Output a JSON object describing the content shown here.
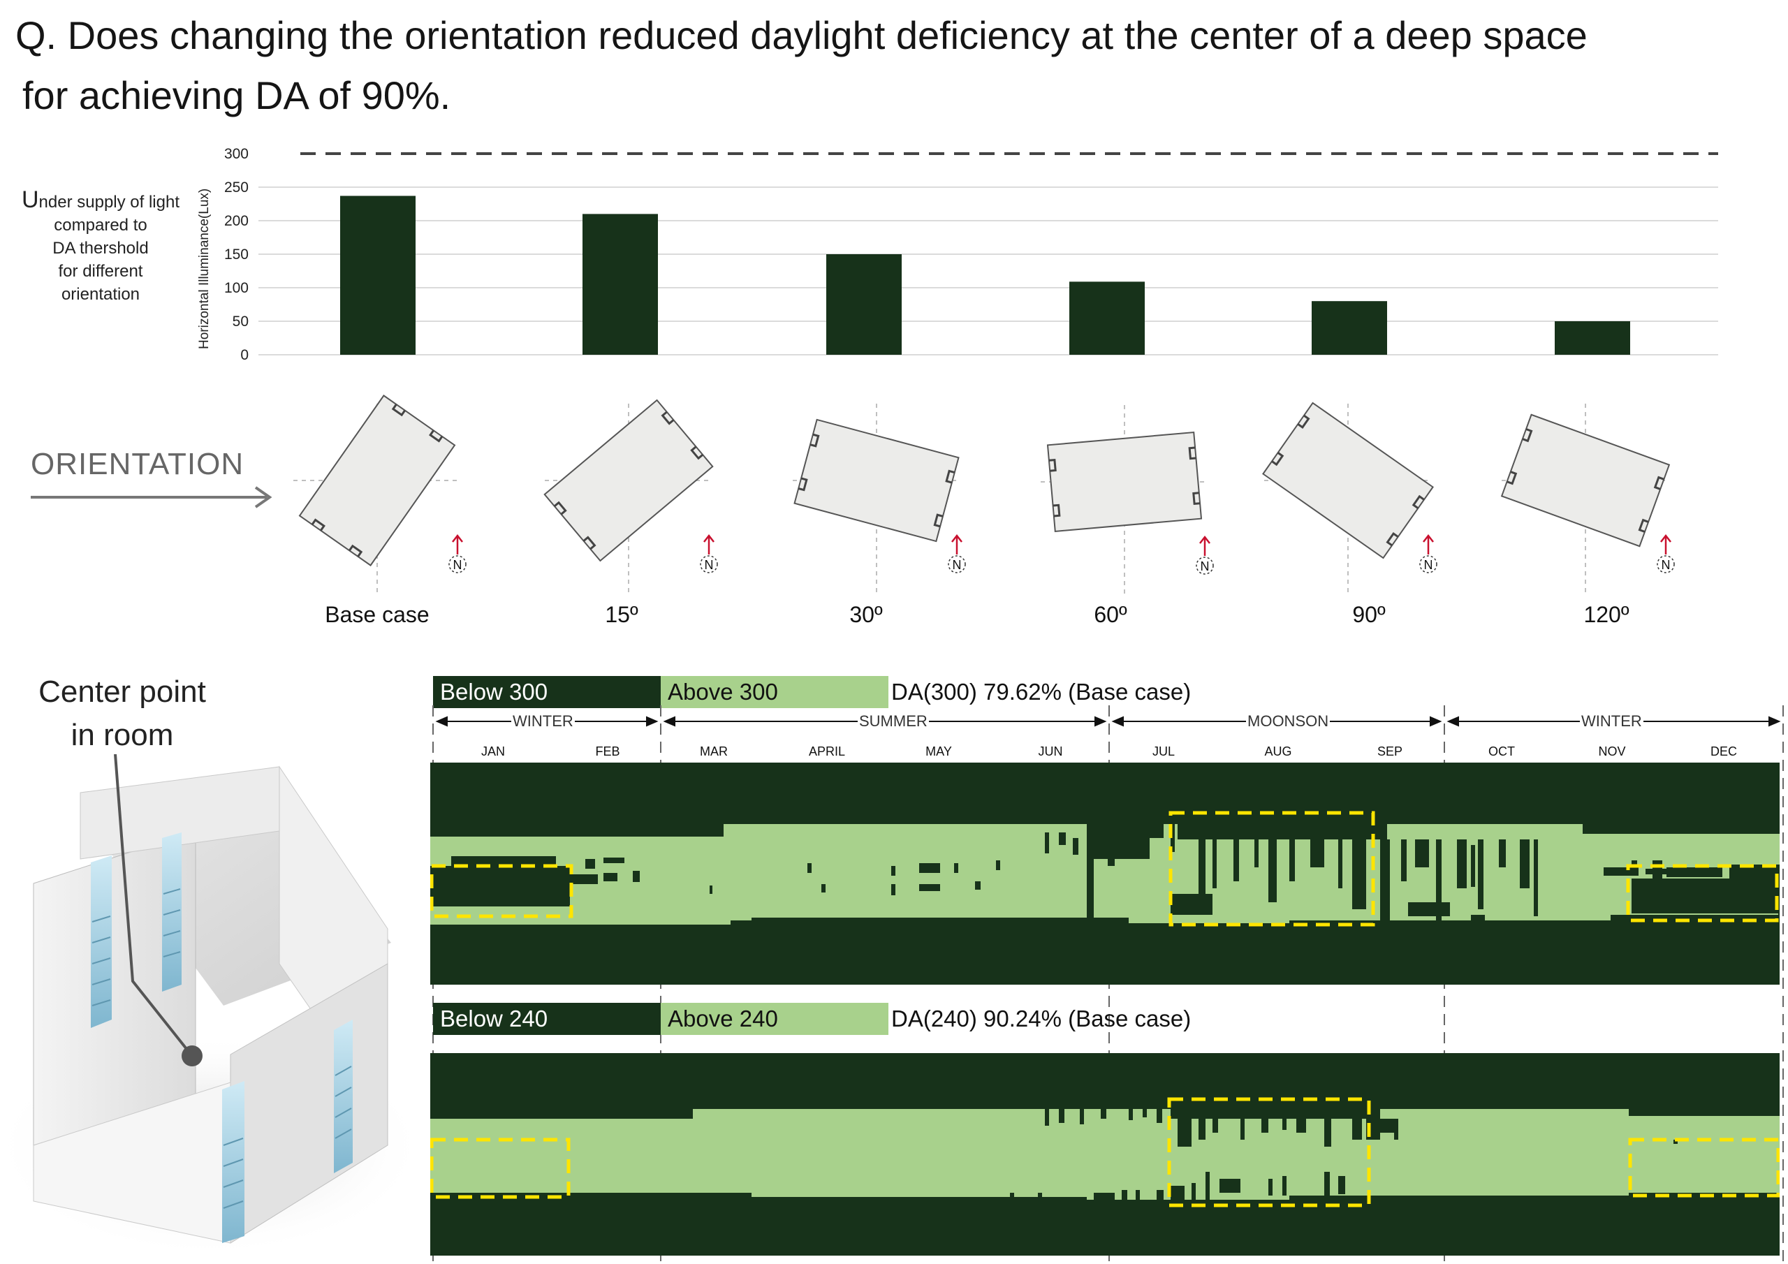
{
  "question": {
    "line1": "Q. Does changing the orientation reduced daylight deficiency at the center of a deep space",
    "line2": "for achieving DA of 90%."
  },
  "side_note": {
    "lead": "U",
    "rest": "nder supply of light",
    "lines": [
      "compared to",
      "DA thershold",
      "for different",
      "orientation"
    ]
  },
  "chart_data": {
    "type": "bar",
    "title": "",
    "xlabel": "",
    "ylabel": "Horizontal Illuminance(Lux)",
    "ylim": [
      0,
      300
    ],
    "yticks": [
      "300",
      "250",
      "200",
      "150",
      "100",
      "50",
      "0"
    ],
    "categories": [
      "Base case",
      "15º",
      "30º",
      "60º",
      "90º",
      "120º"
    ],
    "values": [
      237,
      210,
      150,
      109,
      80,
      50
    ],
    "threshold_line": 300,
    "bar_color": "#17321a",
    "grid": true
  },
  "orientation": {
    "label": "ORIENTATION",
    "north_symbol": "N",
    "angles_deg": [
      -55,
      -40,
      15,
      -5,
      35,
      20
    ]
  },
  "room": {
    "center_label_line1": "Center point",
    "center_label_line2": "in room"
  },
  "heatmap_300": {
    "legend_below": "Below 300",
    "legend_above": "Above 300",
    "da_text": "DA(300) 79.62% (Base case)"
  },
  "heatmap_240": {
    "legend_below": "Below 240",
    "legend_above": "Above 240",
    "da_text": "DA(240) 90.24% (Base case)"
  },
  "seasons": [
    "WINTER",
    "SUMMER",
    "MOONSON",
    "WINTER"
  ],
  "months": [
    "JAN",
    "FEB",
    "MAR",
    "APRIL",
    "MAY",
    "JUN",
    "JUL",
    "AUG",
    "SEP",
    "OCT",
    "NOV",
    "DEC"
  ],
  "colors": {
    "below": "#17321a",
    "above": "#a8d18c",
    "highlight": "#ffe500",
    "north_arrow": "#c8102e"
  }
}
